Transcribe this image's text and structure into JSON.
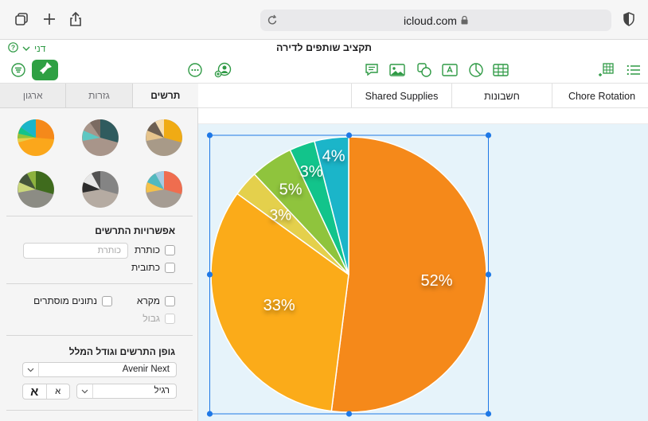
{
  "browser": {
    "url": "icloud.com",
    "icons": [
      "tabs-overview-icon",
      "new-tab-icon",
      "share-icon",
      "reload-icon",
      "lock-icon",
      "privacy-shield-icon"
    ]
  },
  "document": {
    "title": "תקציב שותפים לדירה",
    "user_label": "דני",
    "help_icon": "help-icon"
  },
  "toolbar": {
    "left_icons": [
      "view-menu-icon",
      "insert-table-row-icon"
    ],
    "center_icons": [
      "table-icon",
      "chart-icon",
      "text-box-icon",
      "shapes-icon",
      "media-icon",
      "comment-icon"
    ],
    "right_icons": [
      "collaborate-icon",
      "more-icon",
      "format-brush-icon",
      "organize-icon"
    ]
  },
  "sidebar": {
    "tabs": [
      {
        "label": "ארגון",
        "active": false
      },
      {
        "label": "גזרות",
        "active": false
      },
      {
        "label": "תרשים",
        "active": true
      }
    ],
    "chart_options": {
      "title": "אפשרויות התרשים",
      "title_checkbox": "כותרת",
      "title_placeholder": "כותרת",
      "caption_checkbox": "כתובית"
    },
    "legend_options": {
      "legend_checkbox": "מקרא",
      "hidden_data_checkbox": "נתונים מוסתרים",
      "border_checkbox": "גבול"
    },
    "font": {
      "title": "גופן התרשים וגודל המלל",
      "family": "Avenir Next",
      "style": "רגיל",
      "bigger": "א",
      "smaller": "א"
    }
  },
  "sheets": {
    "tabs": [
      "Chore Rotation",
      "חשבונות",
      "Shared Supplies"
    ]
  },
  "chart_data": {
    "type": "pie",
    "values": [
      52,
      33,
      3,
      5,
      3,
      4
    ],
    "labels": [
      "52%",
      "33%",
      "3%",
      "5%",
      "3%",
      "4%"
    ],
    "colors": [
      "#f5891a",
      "#fbab19",
      "#e4d04c",
      "#8fc43d",
      "#12c48b",
      "#1bb5c9"
    ]
  }
}
